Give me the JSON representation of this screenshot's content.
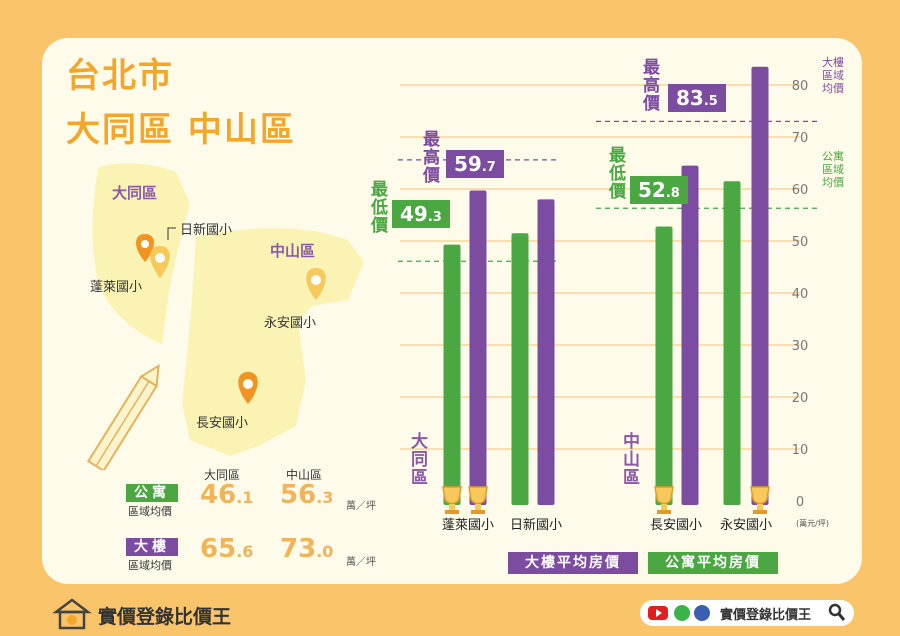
{
  "title": {
    "line1": "台北市",
    "line2": "大同區 中山區"
  },
  "map": {
    "districts": [
      "大同區",
      "中山區"
    ],
    "schools": [
      "日新國小",
      "蓬萊國小",
      "永安國小",
      "長安國小"
    ]
  },
  "stats": {
    "headers": [
      "大同區",
      "中山區"
    ],
    "apartment": {
      "badge": "公寓",
      "sub": "區域均價",
      "datong": {
        "int": "46",
        "dec": ".1"
      },
      "zhongshan": {
        "int": "56",
        "dec": ".3"
      }
    },
    "building": {
      "badge": "大樓",
      "sub": "區域均價",
      "datong": {
        "int": "65",
        "dec": ".6"
      },
      "zhongshan": {
        "int": "73",
        "dec": ".0"
      }
    },
    "unit": "萬／坪"
  },
  "chart_data": {
    "type": "bar",
    "groups": [
      {
        "district": "大同區",
        "schools": [
          "蓬萊國小",
          "日新國小"
        ]
      },
      {
        "district": "中山區",
        "schools": [
          "長安國小",
          "永安國小"
        ]
      }
    ],
    "categories": [
      "蓬萊國小",
      "日新國小",
      "長安國小",
      "永安國小"
    ],
    "series": [
      {
        "name": "公寓平均房價",
        "color": "#4aa741",
        "values": [
          49.3,
          51.5,
          52.8,
          61.5
        ]
      },
      {
        "name": "大樓平均房價",
        "color": "#7b4ca0",
        "values": [
          59.7,
          58.0,
          64.5,
          83.5
        ]
      }
    ],
    "ylim": [
      0,
      80
    ],
    "yticks": [
      "0",
      "10",
      "20",
      "30",
      "40",
      "50",
      "60",
      "70",
      "80"
    ],
    "yunit": "(萬元/坪)",
    "ref_lines": {
      "apartment_avg": {
        "label": "公寓區域均價",
        "datong": 46.1,
        "zhongshan": 56.3
      },
      "building_avg": {
        "label": "大樓區域均價",
        "datong": 65.6,
        "zhongshan": 73.0
      }
    },
    "callouts": [
      {
        "label": "最低價",
        "int": "49",
        "dec": ".3",
        "color": "#4aa741"
      },
      {
        "label": "最高價",
        "int": "59",
        "dec": ".7",
        "color": "#7b4ca0"
      },
      {
        "label": "最低價",
        "int": "52",
        "dec": ".8",
        "color": "#4aa741"
      },
      {
        "label": "最高價",
        "int": "83",
        "dec": ".5",
        "color": "#7b4ca0"
      }
    ],
    "right_labels": {
      "building": "大樓區域均價",
      "apartment": "公寓區域均價"
    },
    "legend": [
      "大樓平均房價",
      "公寓平均房價"
    ]
  },
  "footer": {
    "brand": "實價登錄比價王",
    "social_text": "實價登錄比價王"
  },
  "colors": {
    "orange": "#f3a72a",
    "purple": "#7b4ca0",
    "green": "#4aa741",
    "bg": "#f9c46a"
  }
}
